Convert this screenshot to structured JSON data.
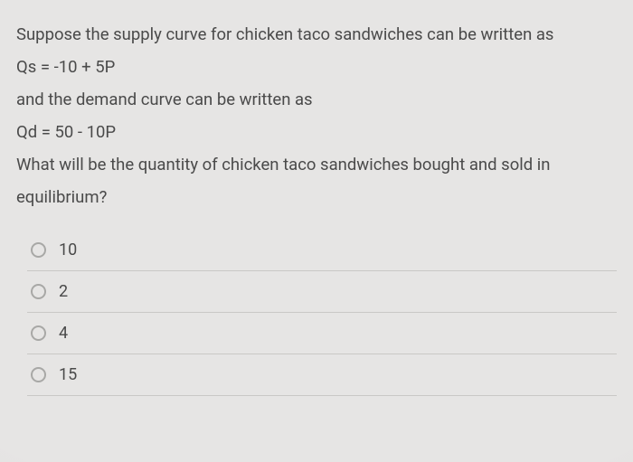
{
  "question": {
    "line1": "Suppose the supply curve for chicken taco sandwiches can be written as",
    "eq1": "Qs = -10 + 5P",
    "line2": "and the demand curve can be written as",
    "eq2": "Qd = 50 - 10P",
    "line3": "What will be the quantity of chicken taco sandwiches bought and sold in equilibrium?"
  },
  "options": [
    {
      "label": "10"
    },
    {
      "label": "2"
    },
    {
      "label": "4"
    },
    {
      "label": "15"
    }
  ],
  "colors": {
    "background": "#e6e5e4",
    "text": "#4a4a4a",
    "divider": "#c9c8c6",
    "radio_border": "#a8a8a6"
  },
  "typography": {
    "body_fontsize": 18.5,
    "option_fontsize": 18,
    "line_height": 1.95
  }
}
